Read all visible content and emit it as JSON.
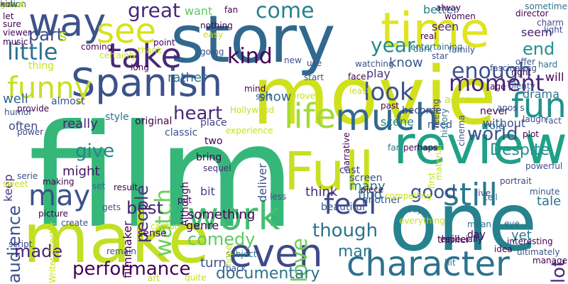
{
  "words": [
    {
      "text": "film",
      "color": "#35b779"
    },
    {
      "text": "movie",
      "color": "#d0e11c"
    },
    {
      "text": "story",
      "color": "#31688e"
    },
    {
      "text": "one",
      "color": "#26828e"
    },
    {
      "text": "make",
      "color": "#c2df23"
    },
    {
      "text": "Full",
      "color": "#c8e020"
    },
    {
      "text": "review",
      "color": "#1fa187"
    },
    {
      "text": "character",
      "color": "#2c728e"
    },
    {
      "text": "Spanish",
      "color": "#3b528b"
    },
    {
      "text": "time",
      "color": "#e0e41e"
    },
    {
      "text": "way",
      "color": "#3b528b"
    },
    {
      "text": "much",
      "color": "#31688e"
    },
    {
      "text": "even",
      "color": "#3e4a89"
    },
    {
      "text": "work",
      "color": "#44bf70"
    },
    {
      "text": "take",
      "color": "#482878"
    },
    {
      "text": "life",
      "color": "#a2da37"
    },
    {
      "text": "still",
      "color": "#2a788e"
    },
    {
      "text": "fun",
      "color": "#21918c"
    },
    {
      "text": "see",
      "color": "#d8e219"
    },
    {
      "text": "feel",
      "color": "#3e4989"
    },
    {
      "text": "may",
      "color": "#3b528b"
    },
    {
      "text": "little",
      "color": "#2c728e"
    },
    {
      "text": "funny",
      "color": "#c8e020"
    },
    {
      "text": "kind",
      "color": "#440154"
    },
    {
      "text": "come",
      "color": "#26828e"
    },
    {
      "text": "look",
      "color": "#3b528b"
    },
    {
      "text": "great",
      "color": "#482878"
    },
    {
      "text": "enough",
      "color": "#3b528b"
    },
    {
      "text": "moment",
      "color": "#482878"
    },
    {
      "text": "year",
      "color": "#238a8d"
    },
    {
      "text": "end",
      "color": "#21918c"
    },
    {
      "text": "heart",
      "color": "#482878"
    },
    {
      "text": "watch",
      "color": "#6ece58"
    },
    {
      "text": "people",
      "color": "#46327e"
    },
    {
      "text": "give",
      "color": "#23888e"
    },
    {
      "text": "world",
      "color": "#3b528b"
    },
    {
      "text": "love",
      "color": "#6ece58"
    },
    {
      "text": "good",
      "color": "#3b528b"
    },
    {
      "text": "audience",
      "color": "#3b528b"
    },
    {
      "text": "best",
      "color": "#482475"
    },
    {
      "text": "though",
      "color": "#2c728e"
    },
    {
      "text": "performance",
      "color": "#440154"
    },
    {
      "text": "made",
      "color": "#482475"
    },
    {
      "text": "documentary",
      "color": "#2c728e"
    },
    {
      "text": "comedy",
      "color": "#5ec962"
    },
    {
      "text": "lot",
      "color": "#482878"
    },
    {
      "text": "Despite",
      "color": "#21918c"
    },
    {
      "text": "tale",
      "color": "#2c728e"
    },
    {
      "text": "man",
      "color": "#2a788e"
    },
    {
      "text": "yet",
      "color": "#2a788e"
    },
    {
      "text": "find",
      "color": "#2c728e"
    },
    {
      "text": "think",
      "color": "#482878"
    },
    {
      "text": "many",
      "color": "#2a788e"
    },
    {
      "text": "turn",
      "color": "#3b528b"
    },
    {
      "text": "something",
      "color": "#440154"
    },
    {
      "text": "really",
      "color": "#482475"
    },
    {
      "text": "might",
      "color": "#471365"
    },
    {
      "text": "well",
      "color": "#31688e"
    },
    {
      "text": "thing",
      "color": "#c8e020"
    },
    {
      "text": "part",
      "color": "#3e4989"
    },
    {
      "text": "s",
      "color": "#b5de2b"
    },
    {
      "text": "show",
      "color": "#31688e"
    },
    {
      "text": "rather",
      "color": "#2c728e"
    },
    {
      "text": "know",
      "color": "#38588c"
    },
    {
      "text": "want",
      "color": "#5ec962"
    },
    {
      "text": "better",
      "color": "#26828e"
    },
    {
      "text": "seen",
      "color": "#482878"
    },
    {
      "text": "play",
      "color": "#46327e"
    },
    {
      "text": "drama",
      "color": "#2c728e"
    },
    {
      "text": "will",
      "color": "#440154"
    },
    {
      "text": "seem",
      "color": "#481f70"
    },
    {
      "text": "scene",
      "color": "#26828e"
    },
    {
      "text": "without",
      "color": "#3b528b"
    },
    {
      "text": "deliver",
      "color": "#3b528b"
    },
    {
      "text": "bit",
      "color": "#3e4989"
    },
    {
      "text": "filmmaker",
      "color": "#440154"
    },
    {
      "text": "genre",
      "color": "#440154"
    },
    {
      "text": "often",
      "color": "#3e4989"
    },
    {
      "text": "keep",
      "color": "#46327e"
    },
    {
      "text": "sense",
      "color": "#440154"
    },
    {
      "text": "classic",
      "color": "#3b528b"
    },
    {
      "text": "original",
      "color": "#440154"
    },
    {
      "text": "style",
      "color": "#2c728e"
    },
    {
      "text": "almost",
      "color": "#3b528b"
    },
    {
      "text": "power",
      "color": "#3e4989"
    },
    {
      "text": "humor",
      "color": "#3b528b"
    },
    {
      "text": "provide",
      "color": "#440154"
    },
    {
      "text": "place",
      "color": "#3e4989"
    },
    {
      "text": "two",
      "color": "#440154"
    },
    {
      "text": "bring",
      "color": "#440154"
    },
    {
      "text": "Although",
      "color": "#440154"
    },
    {
      "text": "experience",
      "color": "#c8e020"
    },
    {
      "text": "making",
      "color": "#440154"
    },
    {
      "text": "picture",
      "color": "#440154"
    },
    {
      "text": "script",
      "color": "#3e4989"
    },
    {
      "text": "gets",
      "color": "#38588c"
    },
    {
      "text": "set",
      "color": "#2c728e"
    },
    {
      "text": "sequel",
      "color": "#482878"
    },
    {
      "text": "narrative",
      "color": "#440154"
    },
    {
      "text": "cast",
      "color": "#3e4989"
    },
    {
      "text": "screen",
      "color": "#3b528b"
    },
    {
      "text": "piece",
      "color": "#440154"
    },
    {
      "text": "another",
      "color": "#3b528b"
    },
    {
      "text": "beautiful",
      "color": "#3b528b"
    },
    {
      "text": "thriller",
      "color": "#440154"
    },
    {
      "text": "day",
      "color": "#440154"
    },
    {
      "text": "become",
      "color": "#3e4989"
    },
    {
      "text": "never",
      "color": "#440154"
    },
    {
      "text": "role",
      "color": "#2c728e"
    },
    {
      "text": "need",
      "color": "#3b528b"
    },
    {
      "text": "actor",
      "color": "#c8e020"
    },
    {
      "text": "cinema",
      "color": "#3b528b"
    },
    {
      "text": "feeling",
      "color": "#3e4989"
    },
    {
      "text": "history",
      "color": "#2c728e"
    },
    {
      "text": "fascinating",
      "color": "#3b528b"
    },
    {
      "text": "director",
      "color": "#440154"
    },
    {
      "text": "charm",
      "color": "#3e4989"
    },
    {
      "text": "dark",
      "color": "#2c728e"
    },
    {
      "text": "real",
      "color": "#440154"
    },
    {
      "text": "alway",
      "color": "#440154"
    },
    {
      "text": "women",
      "color": "#440154"
    },
    {
      "text": "sometime",
      "color": "#2c728e"
    },
    {
      "text": "offer",
      "color": "#3b528b"
    },
    {
      "text": "light",
      "color": "#3b528b"
    },
    {
      "text": "star",
      "color": "#3b528b"
    },
    {
      "text": "family",
      "color": "#3e4989"
    },
    {
      "text": "watching",
      "color": "#3b528b"
    },
    {
      "text": "entertaining",
      "color": "#2c728e"
    },
    {
      "text": "hard",
      "color": "#2c728e"
    },
    {
      "text": "right",
      "color": "#440154"
    },
    {
      "text": "plenty",
      "color": "#3b528b"
    },
    {
      "text": "laugh",
      "color": "#3e4989"
    },
    {
      "text": "age",
      "color": "#440154"
    },
    {
      "text": "fact",
      "color": "#3b528b"
    },
    {
      "text": "plot",
      "color": "#440154"
    },
    {
      "text": "powerful",
      "color": "#3b528b"
    },
    {
      "text": "portrait",
      "color": "#3e4989"
    },
    {
      "text": "minute",
      "color": "#3b528b"
    },
    {
      "text": "past",
      "color": "#440154"
    },
    {
      "text": "say",
      "color": "#2c728e"
    },
    {
      "text": "live",
      "color": "#3b528b"
    },
    {
      "text": "far",
      "color": "#2c728e"
    },
    {
      "text": "apos s",
      "color": "#3b528b"
    },
    {
      "text": "especially",
      "color": "#440154"
    },
    {
      "text": "material",
      "color": "#c8e020"
    },
    {
      "text": "perhaps",
      "color": "#440154"
    },
    {
      "text": "first",
      "color": "#c8e020"
    },
    {
      "text": "everything",
      "color": "#c8e020"
    },
    {
      "text": "hit",
      "color": "#2c728e"
    },
    {
      "text": "mean",
      "color": "#2c728e"
    },
    {
      "text": "idea",
      "color": "#440154"
    },
    {
      "text": "interesting",
      "color": "#440154"
    },
    {
      "text": "ultimately",
      "color": "#3b528b"
    },
    {
      "text": "manage",
      "color": "#440154"
    },
    {
      "text": "eye",
      "color": "#2c728e"
    },
    {
      "text": "tell",
      "color": "#2c728e"
    },
    {
      "text": "back",
      "color": "#3b528b"
    },
    {
      "text": "subject",
      "color": "#2c728e"
    },
    {
      "text": "quite",
      "color": "#c8e020"
    },
    {
      "text": "art",
      "color": "#c8e020"
    },
    {
      "text": "create",
      "color": "#3b528b"
    },
    {
      "text": "Writer director",
      "color": "#c8e020"
    },
    {
      "text": "remain",
      "color": "#3b528b"
    },
    {
      "text": "result",
      "color": "#440154"
    },
    {
      "text": "capture",
      "color": "#c8e020"
    },
    {
      "text": "put",
      "color": "#440154"
    },
    {
      "text": "hope",
      "color": "#c8e020"
    },
    {
      "text": "less",
      "color": "#3b528b"
    },
    {
      "text": "compelling",
      "color": "#c8e020"
    },
    {
      "text": "Hollywood",
      "color": "#c8e020"
    },
    {
      "text": "mind",
      "color": "#440154"
    },
    {
      "text": "sort",
      "color": "#3b528b"
    },
    {
      "text": "prove",
      "color": "#c8e020"
    },
    {
      "text": "least",
      "color": "#c8e020"
    },
    {
      "text": "new",
      "color": "#3b528b"
    },
    {
      "text": "use",
      "color": "#3b528b"
    },
    {
      "text": "start",
      "color": "#3b528b"
    },
    {
      "text": "face",
      "color": "#440154"
    },
    {
      "text": "fan",
      "color": "#440154"
    },
    {
      "text": "nothing",
      "color": "#440154"
    },
    {
      "text": "easy",
      "color": "#c8e020"
    },
    {
      "text": "going",
      "color": "#3b528b"
    },
    {
      "text": "thank",
      "color": "#c8e020"
    },
    {
      "text": "certainly",
      "color": "#c8e020"
    },
    {
      "text": "point",
      "color": "#440154"
    },
    {
      "text": "coming",
      "color": "#440154"
    },
    {
      "text": "let",
      "color": "#440154"
    },
    {
      "text": "sure",
      "color": "#440154"
    },
    {
      "text": "viewer",
      "color": "#440154"
    },
    {
      "text": "music",
      "color": "#440154"
    },
    {
      "text": "long",
      "color": "#440154"
    },
    {
      "text": "sweet",
      "color": "#c8e020"
    },
    {
      "text": "serie",
      "color": "#3b528b"
    },
    {
      "text": "smart",
      "color": "#c8e020"
    },
    {
      "text": "kid",
      "color": "#440154"
    },
    {
      "text": "action",
      "color": "#2c728e"
    },
    {
      "text": "tease",
      "color": "#c8e020"
    },
    {
      "text": "go",
      "color": "#c8e020"
    },
    {
      "text": "now",
      "color": "#3b528b"
    }
  ]
}
